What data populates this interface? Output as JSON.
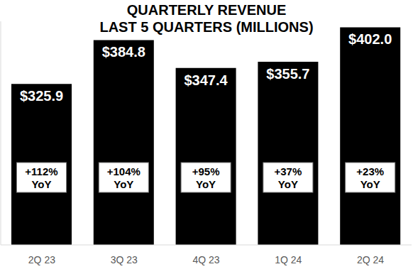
{
  "chart_data": {
    "type": "bar",
    "title": "QUARTERLY REVENUE",
    "subtitle": "LAST 5 QUARTERS (MILLIONS)",
    "categories": [
      "2Q 23",
      "3Q 23",
      "4Q 23",
      "1Q 24",
      "2Q 24"
    ],
    "values": [
      325.9,
      384.8,
      347.4,
      355.7,
      402.0
    ],
    "value_labels": [
      "$325.9",
      "$384.8",
      "$347.4",
      "$355.7",
      "$402.0"
    ],
    "data_labels": true,
    "color": "#000000",
    "ylim": [
      110,
      410
    ],
    "tick_labels": "x",
    "grid": false,
    "annotations": [
      [
        "+112%",
        "YoY"
      ],
      [
        "+104%",
        "YoY"
      ],
      [
        "+95%",
        "YoY"
      ],
      [
        "+37%",
        "YoY"
      ],
      [
        "+23%",
        "YoY"
      ]
    ]
  }
}
